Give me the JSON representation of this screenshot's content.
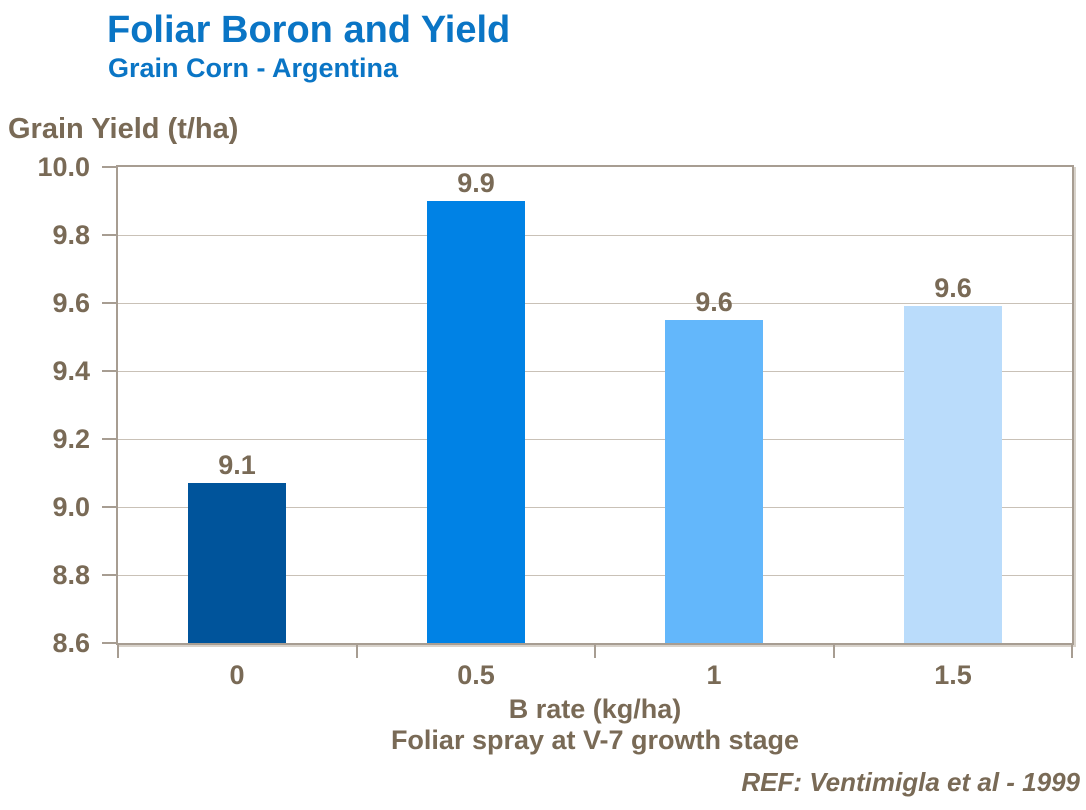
{
  "header": {
    "title": "Foliar Boron and Yield",
    "subtitle": "Grain Corn - Argentina"
  },
  "footer": {
    "reference": "REF: Ventimigla et al - 1999"
  },
  "chart_data": {
    "type": "bar",
    "title": "Foliar Boron and Yield",
    "subtitle": "Grain Corn - Argentina",
    "ylabel": "Grain Yield (t/ha)",
    "xlabel": "B rate (kg/ha)",
    "xlabel_note": "Foliar spray at V-7 growth stage",
    "categories": [
      "0",
      "0.5",
      "1",
      "1.5"
    ],
    "values": [
      9.1,
      9.9,
      9.6,
      9.6
    ],
    "data_labels": [
      "9.1",
      "9.9",
      "9.6",
      "9.6"
    ],
    "values_plotted": [
      9.07,
      9.9,
      9.55,
      9.59
    ],
    "ylim": [
      8.6,
      10.0
    ],
    "ytick_step": 0.2,
    "yticks": [
      "10.0",
      "9.8",
      "9.6",
      "9.4",
      "9.2",
      "9.0",
      "8.8",
      "8.6"
    ],
    "grid": "horizontal",
    "legend": "none",
    "bar_colors": [
      "#00549B",
      "#0082E5",
      "#63B7FB",
      "#BADCFB"
    ],
    "reference": "REF: Ventimigla et al - 1999"
  },
  "colors": {
    "title_blue": "#0A75C5",
    "axis_text": "#796A56",
    "gridline": "#C9C1B7",
    "plot_border": "#A79D92",
    "background": "#FFFFFF"
  }
}
